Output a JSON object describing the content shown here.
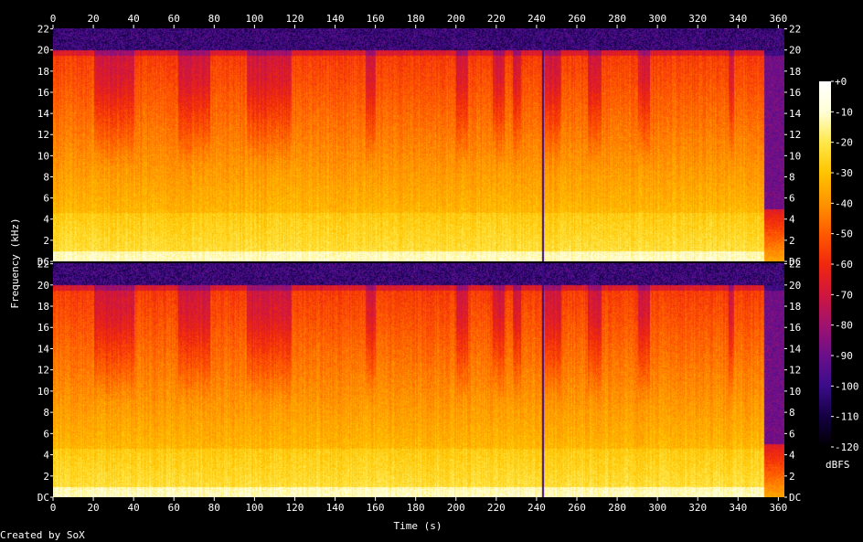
{
  "chart_data": {
    "type": "heatmap",
    "xlabel": "Time (s)",
    "ylabel": "Frequency (kHz)",
    "colorbar_label": "dBFS",
    "credit": "Created by SoX",
    "x_ticks": [
      0,
      20,
      40,
      60,
      80,
      100,
      120,
      140,
      160,
      180,
      200,
      220,
      240,
      260,
      280,
      300,
      320,
      340,
      360
    ],
    "xlim": [
      0,
      363
    ],
    "x_range_tick_label": "360",
    "channels": [
      {
        "name": "",
        "y_tick_labels": [
          "DC",
          "2",
          "4",
          "6",
          "8",
          "10",
          "12",
          "14",
          "16",
          "18",
          "20",
          "22"
        ],
        "y_ticks_khz": [
          0,
          2,
          4,
          6,
          8,
          10,
          12,
          14,
          16,
          18,
          20,
          22
        ],
        "ylim_khz": [
          0,
          22.05
        ],
        "lowpass_cutoff_khz": 20,
        "top_label_of_lower_axis": "2"
      },
      {
        "name": "",
        "y_tick_labels": [
          "DC",
          "2",
          "4",
          "6",
          "8",
          "10",
          "12",
          "14",
          "16",
          "18",
          "20",
          "22"
        ],
        "y_ticks_khz": [
          0,
          2,
          4,
          6,
          8,
          10,
          12,
          14,
          16,
          18,
          20,
          22
        ],
        "ylim_khz": [
          0,
          22.05
        ],
        "lowpass_cutoff_khz": 20
      }
    ],
    "colorbar": {
      "tick_labels": [
        "+0",
        "-10",
        "-20",
        "-30",
        "-40",
        "-50",
        "-60",
        "-70",
        "-80",
        "-90",
        "-100",
        "-110",
        "-120"
      ],
      "range_dbfs": [
        -120,
        0
      ],
      "colors": [
        "#000000",
        "#140042",
        "#3a0c89",
        "#6b0f8b",
        "#a0126e",
        "#d0163e",
        "#f0280d",
        "#ff5a00",
        "#ff9400",
        "#ffc400",
        "#ffe84a",
        "#ffffd8",
        "#ffffff"
      ]
    },
    "energy_profile": {
      "description_free_values": true,
      "full_band_segments_s": [
        [
          0,
          20
        ],
        [
          40,
          62
        ],
        [
          78,
          96
        ],
        [
          118,
          155
        ],
        [
          160,
          200
        ],
        [
          206,
          218
        ],
        [
          224,
          228
        ],
        [
          232,
          244
        ],
        [
          252,
          265
        ],
        [
          272,
          290
        ],
        [
          296,
          335
        ],
        [
          338,
          353
        ]
      ],
      "ending_fade_s": [
        353,
        360
      ],
      "gap_line_s": 243
    }
  }
}
